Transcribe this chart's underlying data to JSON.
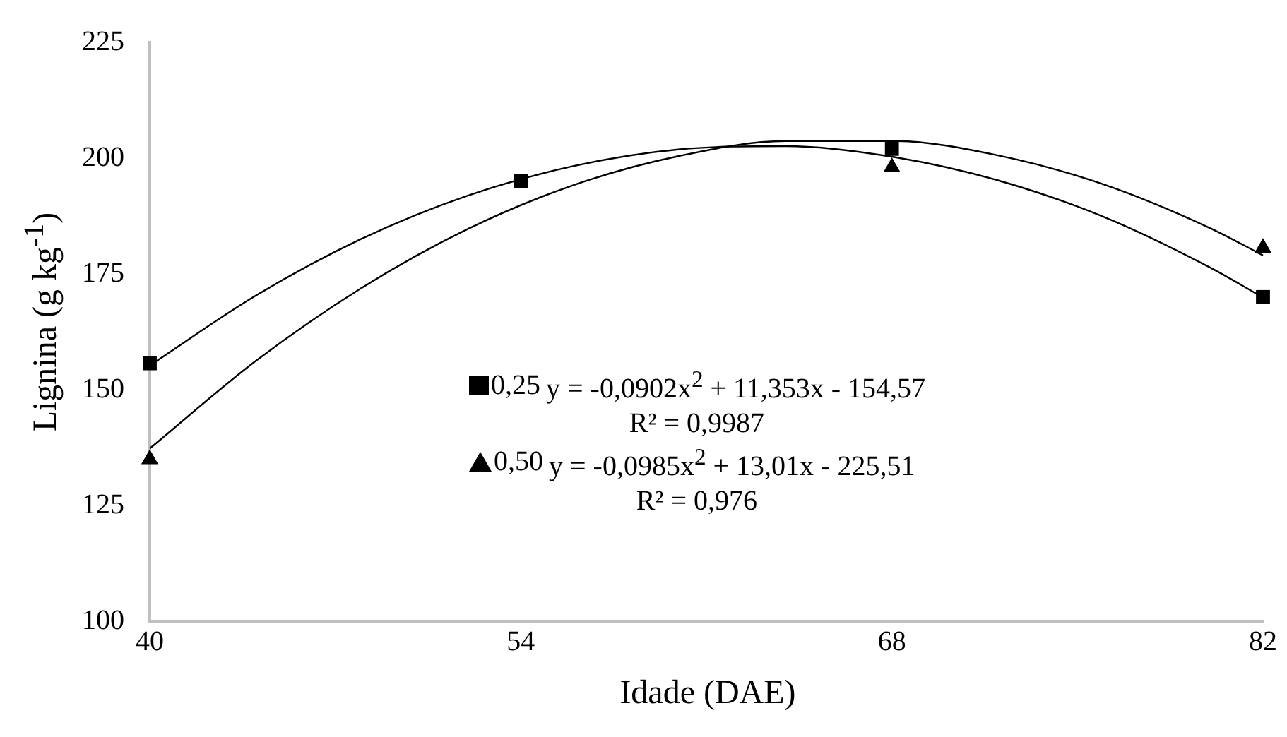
{
  "chart_data": {
    "type": "scatter",
    "xlabel": "Idade (DAE)",
    "ylabel": "Lignina (g kg$^{-1}$)",
    "x": [
      40,
      54,
      68,
      82
    ],
    "series": [
      {
        "name": "0,25",
        "color": "#000000",
        "marker": "square",
        "values": [
          155.7,
          195,
          202,
          170
        ]
      },
      {
        "name": "0,50",
        "color": "#000000",
        "marker": "triangle",
        "values": [
          135,
          null,
          198,
          180.6
        ]
      },
      {
        "type": "line",
        "color": "#000000",
        "marker": "none",
        "x": [
          40,
          44,
          48,
          52,
          56,
          60,
          64,
          68,
          72,
          76,
          80,
          82
        ],
        "values": [
          155.2,
          170.3,
          182.6,
          191.9,
          198.3,
          201.9,
          202.6,
          200.3,
          195.2,
          187.3,
          176.4,
          169.9
        ]
      },
      {
        "type": "line",
        "color": "#000000",
        "marker": "none",
        "x": [
          40,
          44,
          48,
          52,
          56,
          60,
          64,
          68,
          72,
          76,
          80,
          82
        ],
        "values": [
          137.3,
          156.2,
          172.0,
          184.7,
          194.2,
          200.5,
          203.7,
          203.7,
          200.6,
          194.3,
          184.9,
          179.0
        ]
      }
    ],
    "annotations": [
      "y = -0,0902x$^{2}$ + 11,353x - 154,57",
      "R² = 0,9987",
      "y = -0,0985x$^{2}$ + 13,01x - 225,51",
      "R² = 0,976"
    ],
    "xlim": [
      40,
      82
    ],
    "xticks": [
      40,
      54,
      68,
      82
    ],
    "ylim": [
      100,
      225
    ],
    "yticks": [
      100,
      125,
      150,
      175,
      200,
      225
    ],
    "grid": false,
    "legend": "bottom"
  }
}
